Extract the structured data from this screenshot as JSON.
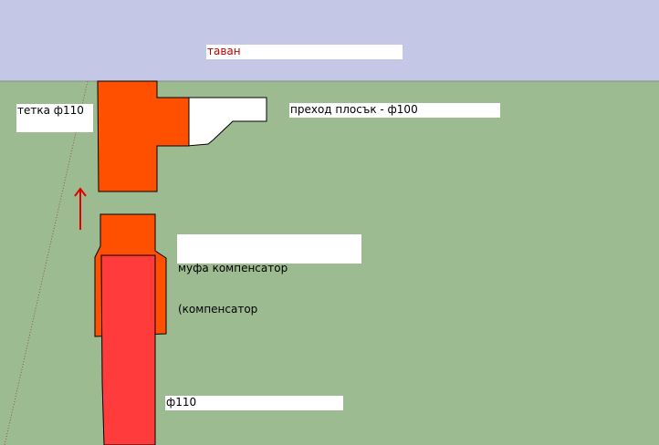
{
  "colors": {
    "ceiling": "#c4c8e6",
    "wall": "#9dbb90",
    "fitting_orange": "#ff5000",
    "pipe_red": "#ff3b3b",
    "outline": "#000000",
    "arrow": "#e00000",
    "label_red_text": "#c00000"
  },
  "labels": {
    "ceiling": "таван",
    "tee": "тетка ф110",
    "transition": "преход плосък - ф100",
    "coupling_line1": "муфа компенсатор",
    "coupling_line2": "(компенсатор",
    "pipe": "ф110"
  }
}
